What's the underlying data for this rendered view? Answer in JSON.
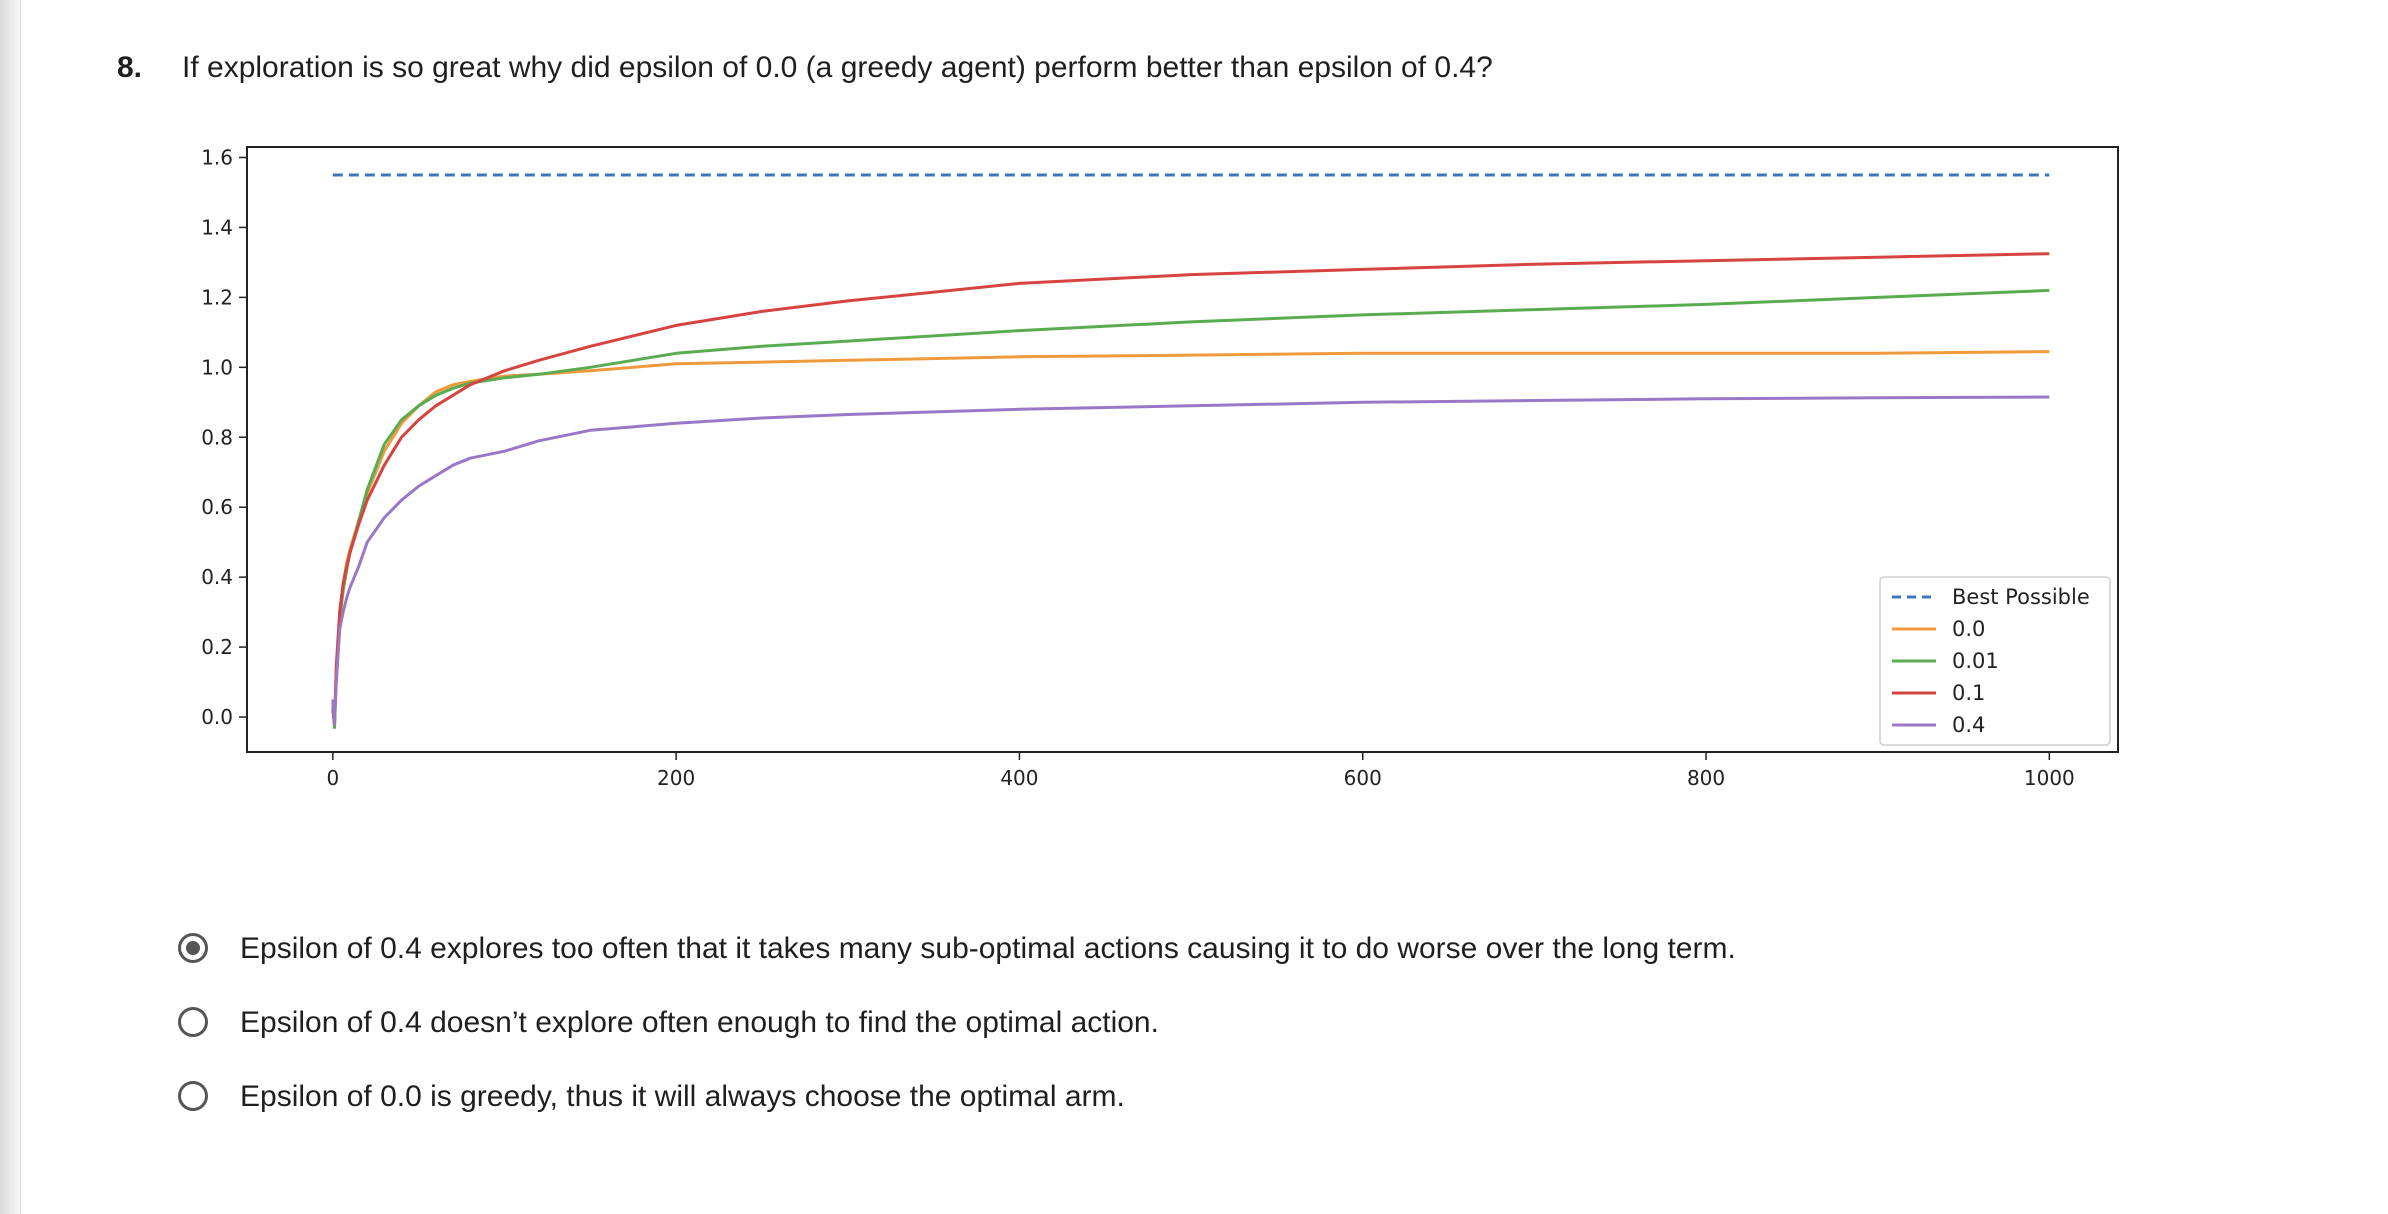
{
  "question": {
    "number": "8.",
    "text": "If exploration is so great why did epsilon of 0.0 (a greedy agent) perform better than epsilon of 0.4?"
  },
  "options": [
    {
      "label": "Epsilon of 0.4 explores too often that it takes many sub-optimal actions causing it to do worse over the long term.",
      "selected": true
    },
    {
      "label": "Epsilon of 0.4 doesn’t explore often enough to find the optimal action.",
      "selected": false
    },
    {
      "label": "Epsilon of 0.0 is greedy, thus it will always choose the optimal arm.",
      "selected": false
    }
  ],
  "chart_data": {
    "type": "line",
    "title": "",
    "xlabel": "",
    "ylabel": "",
    "xlim": [
      -50,
      1040
    ],
    "ylim": [
      -0.1,
      1.63
    ],
    "xticks": [
      0,
      200,
      400,
      600,
      800,
      1000
    ],
    "yticks": [
      0.0,
      0.2,
      0.4,
      0.6,
      0.8,
      1.0,
      1.2,
      1.4,
      1.6
    ],
    "xtick_labels": [
      "0",
      "200",
      "400",
      "600",
      "800",
      "1000"
    ],
    "ytick_labels": [
      "0.0",
      "0.2",
      "0.4",
      "0.6",
      "0.8",
      "1.0",
      "1.2",
      "1.4",
      "1.6"
    ],
    "grid": false,
    "legend_position": "center-right",
    "series": [
      {
        "name": "Best Possible",
        "color": "#3c78b8",
        "dashed": true,
        "x": [
          0,
          1000
        ],
        "y": [
          1.55,
          1.55
        ]
      },
      {
        "name": "0.0",
        "color": "#f09a3e",
        "dashed": false,
        "x": [
          0,
          1,
          2,
          4,
          6,
          8,
          10,
          15,
          20,
          30,
          40,
          50,
          60,
          70,
          80,
          100,
          120,
          150,
          200,
          250,
          300,
          400,
          500,
          600,
          700,
          800,
          900,
          1000
        ],
        "y": [
          0.04,
          -0.02,
          0.15,
          0.3,
          0.38,
          0.44,
          0.48,
          0.56,
          0.64,
          0.76,
          0.84,
          0.89,
          0.93,
          0.95,
          0.96,
          0.975,
          0.98,
          0.99,
          1.01,
          1.015,
          1.02,
          1.03,
          1.035,
          1.04,
          1.04,
          1.04,
          1.04,
          1.045
        ]
      },
      {
        "name": "0.01",
        "color": "#5aac50",
        "dashed": false,
        "x": [
          0,
          1,
          2,
          4,
          6,
          8,
          10,
          15,
          20,
          30,
          40,
          50,
          60,
          70,
          80,
          100,
          120,
          150,
          200,
          250,
          300,
          400,
          500,
          600,
          700,
          800,
          900,
          1000
        ],
        "y": [
          0.03,
          -0.03,
          0.12,
          0.28,
          0.36,
          0.42,
          0.47,
          0.56,
          0.65,
          0.78,
          0.85,
          0.89,
          0.92,
          0.94,
          0.955,
          0.97,
          0.98,
          1.0,
          1.04,
          1.06,
          1.075,
          1.105,
          1.13,
          1.15,
          1.165,
          1.18,
          1.2,
          1.22
        ]
      },
      {
        "name": "0.1",
        "color": "#d5443e",
        "dashed": false,
        "x": [
          0,
          1,
          2,
          4,
          6,
          8,
          10,
          15,
          20,
          30,
          40,
          50,
          60,
          70,
          80,
          100,
          120,
          150,
          200,
          250,
          300,
          400,
          500,
          600,
          700,
          800,
          900,
          1000
        ],
        "y": [
          0.02,
          -0.02,
          0.14,
          0.3,
          0.38,
          0.43,
          0.47,
          0.55,
          0.62,
          0.72,
          0.8,
          0.85,
          0.89,
          0.92,
          0.95,
          0.99,
          1.02,
          1.06,
          1.12,
          1.16,
          1.19,
          1.24,
          1.265,
          1.28,
          1.295,
          1.305,
          1.315,
          1.325
        ]
      },
      {
        "name": "0.4",
        "color": "#9b78c7",
        "dashed": false,
        "x": [
          0,
          1,
          2,
          4,
          6,
          8,
          10,
          15,
          20,
          30,
          40,
          50,
          60,
          70,
          80,
          100,
          120,
          150,
          200,
          250,
          300,
          400,
          500,
          600,
          700,
          800,
          900,
          1000
        ],
        "y": [
          0.05,
          -0.02,
          0.1,
          0.25,
          0.3,
          0.34,
          0.37,
          0.43,
          0.5,
          0.57,
          0.62,
          0.66,
          0.69,
          0.72,
          0.74,
          0.76,
          0.79,
          0.82,
          0.84,
          0.855,
          0.865,
          0.88,
          0.89,
          0.9,
          0.905,
          0.91,
          0.913,
          0.915
        ]
      }
    ]
  }
}
